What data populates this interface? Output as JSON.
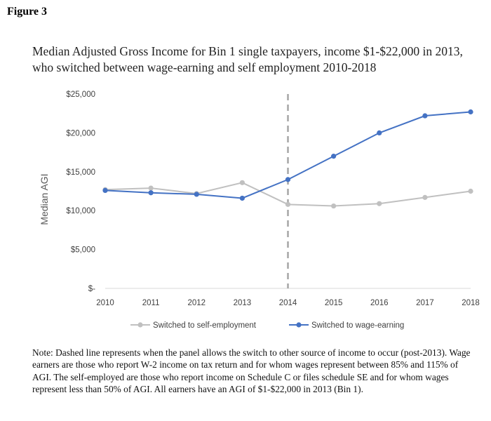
{
  "figure_label": "Figure 3",
  "note": "Note: Dashed line represents when the panel allows the switch to other source of income to occur (post-2013). Wage earners are those who report W-2 income on tax return and for whom wages represent between 85% and 115% of AGI. The self-employed are those who report income on Schedule C or files schedule SE and for whom wages represent less than 50% of AGI. All earners have an AGI of $1-$22,000 in 2013 (Bin 1).",
  "colors": {
    "self_employment": "#c0c0c0",
    "wage_earning": "#4472c4",
    "dashed_line": "#a6a6a6",
    "axis": "#d9d9d9",
    "tick_text": "#404040",
    "ylabel_text": "#595959"
  },
  "chart_data": {
    "type": "line",
    "title": "Median Adjusted Gross Income for Bin 1 single taxpayers, income $1-$22,000 in 2013, who switched between wage-earning and self employment 2010-2018",
    "xlabel": "",
    "ylabel": "Median AGI",
    "x": [
      "2010",
      "2011",
      "2012",
      "2013",
      "2014",
      "2015",
      "2016",
      "2017",
      "2018"
    ],
    "ylim": [
      0,
      25000
    ],
    "ytick_labels": [
      "$-",
      "$5,000",
      "$10,000",
      "$15,000",
      "$20,000",
      "$25,000"
    ],
    "grid": false,
    "legend_position": "bottom",
    "reference_line": {
      "x": "2014",
      "style": "dashed"
    },
    "series": [
      {
        "name": "Switched to self-employment",
        "color": "#c0c0c0",
        "values": [
          12700,
          12900,
          12200,
          13600,
          10800,
          10600,
          10900,
          11700,
          12500
        ]
      },
      {
        "name": "Switched to wage-earning",
        "color": "#4472c4",
        "values": [
          12600,
          12300,
          12100,
          11600,
          14000,
          17000,
          20000,
          22200,
          22700
        ]
      }
    ]
  }
}
